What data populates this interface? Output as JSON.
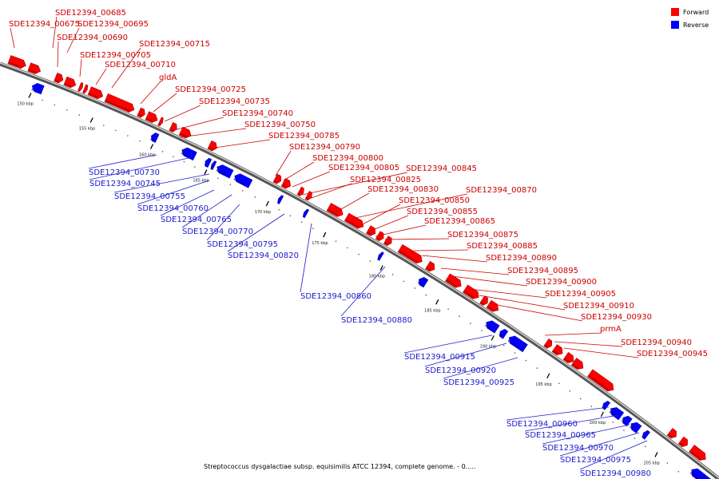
{
  "legend": [
    {
      "label": "Forward",
      "color": "#ff0000"
    },
    {
      "label": "Reverse",
      "color": "#0000ff"
    }
  ],
  "caption": "Streptococcus dysgalactiae subsp. equisimilis ATCC 12394, complete genome. - 0.....",
  "kbp_ticks": [
    "150 kbp",
    "155 kbp",
    "160 kbp",
    "165 kbp",
    "170 kbp",
    "175 kbp",
    "180 kbp",
    "185 kbp",
    "190 kbp",
    "195 kbp",
    "200 kbp",
    "205 kbp"
  ],
  "forward_labels": [
    "SDE12394_00685",
    "SDE12394_00675",
    "SDE12394_00695",
    "SDE12394_00690",
    "SDE12394_00715",
    "SDE12394_00705",
    "SDE12394_00710",
    "gldA",
    "SDE12394_00725",
    "SDE12394_00735",
    "SDE12394_00740",
    "SDE12394_00750",
    "SDE12394_00785",
    "SDE12394_00790",
    "SDE12394_00800",
    "SDE12394_00805",
    "SDE12394_00845",
    "SDE12394_00825",
    "SDE12394_00830",
    "SDE12394_00870",
    "SDE12394_00850",
    "SDE12394_00855",
    "SDE12394_00865",
    "SDE12394_00875",
    "SDE12394_00885",
    "SDE12394_00890",
    "SDE12394_00895",
    "SDE12394_00900",
    "SDE12394_00905",
    "SDE12394_00910",
    "SDE12394_00930",
    "prmA",
    "SDE12394_00940",
    "SDE12394_00945"
  ],
  "reverse_labels": [
    "SDE12394_00730",
    "SDE12394_00745",
    "SDE12394_00755",
    "SDE12394_00760",
    "SDE12394_00765",
    "SDE12394_00770",
    "SDE12394_00795",
    "SDE12394_00820",
    "SDE12394_00860",
    "SDE12394_00880",
    "SDE12394_00915",
    "SDE12394_00920",
    "SDE12394_00925",
    "SDE12394_00960",
    "SDE12394_00965",
    "SDE12394_00970",
    "SDE12394_00975",
    "SDE12394_00980"
  ]
}
